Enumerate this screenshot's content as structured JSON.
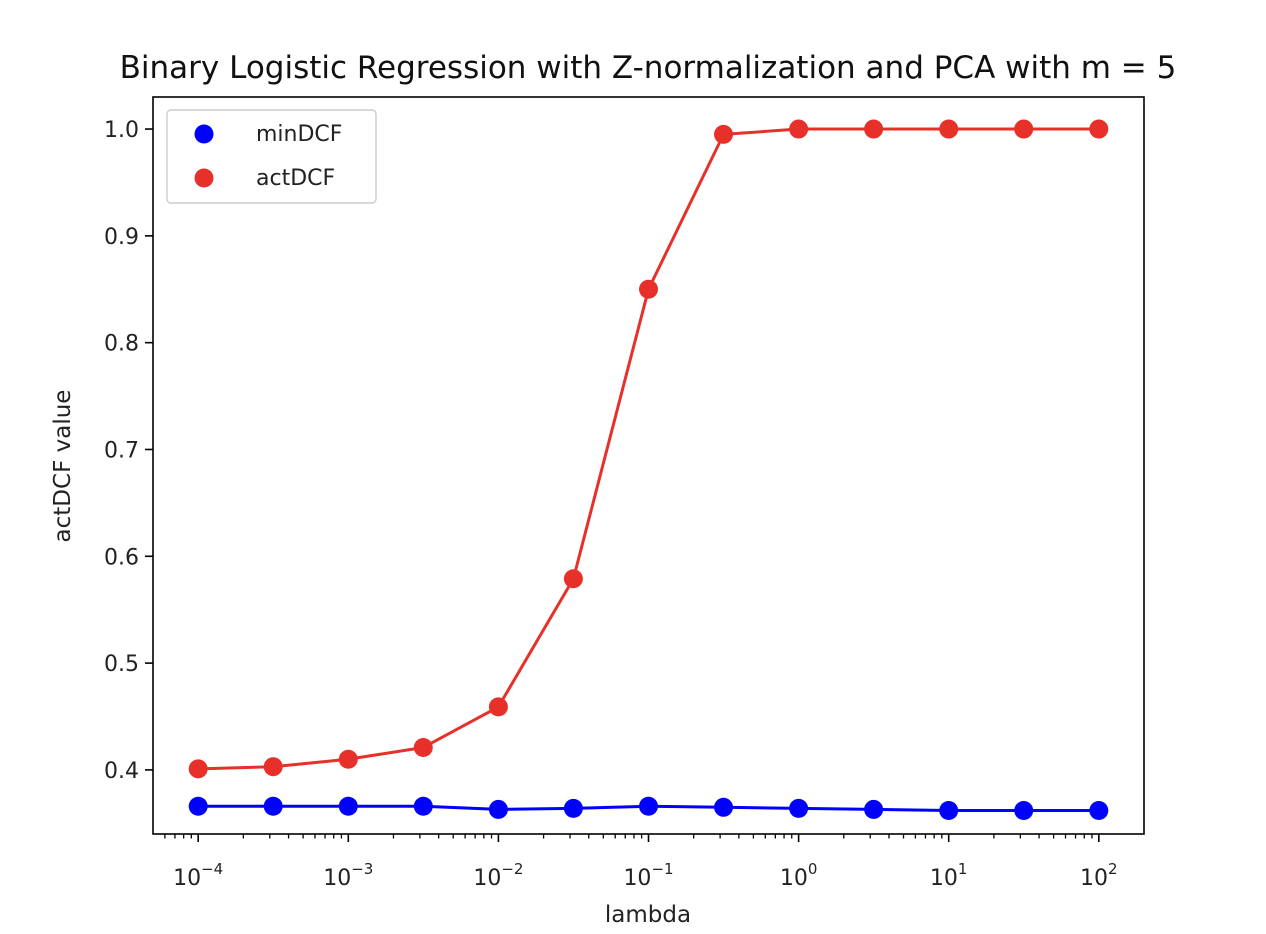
{
  "chart_data": {
    "type": "line",
    "title": "Binary Logistic Regression with Z-normalization and PCA with m = 5",
    "xlabel": "lambda",
    "ylabel": "actDCF value",
    "xscale": "log",
    "xlim": [
      5e-05,
      200
    ],
    "ylim": [
      0.34,
      1.03
    ],
    "x_ticks": [
      {
        "base": "10",
        "exp": "−4"
      },
      {
        "base": "10",
        "exp": "−3"
      },
      {
        "base": "10",
        "exp": "−2"
      },
      {
        "base": "10",
        "exp": "−1"
      },
      {
        "base": "10",
        "exp": "0"
      },
      {
        "base": "10",
        "exp": "1"
      },
      {
        "base": "10",
        "exp": "2"
      }
    ],
    "y_ticks": [
      "0.4",
      "0.5",
      "0.6",
      "0.7",
      "0.8",
      "0.9",
      "1.0"
    ],
    "grid": false,
    "legend_position": "top-left",
    "x": [
      0.0001,
      0.000316,
      0.001,
      0.00316,
      0.01,
      0.0316,
      0.1,
      0.316,
      1,
      3.16,
      10,
      31.6,
      100
    ],
    "series": [
      {
        "name": "minDCF",
        "color": "#0000ff",
        "values": [
          0.366,
          0.366,
          0.366,
          0.366,
          0.363,
          0.364,
          0.366,
          0.365,
          0.364,
          0.363,
          0.362,
          0.362,
          0.362
        ]
      },
      {
        "name": "actDCF",
        "color": "#e8302a",
        "values": [
          0.401,
          0.403,
          0.41,
          0.421,
          0.459,
          0.579,
          0.85,
          0.995,
          1.0,
          1.0,
          1.0,
          1.0,
          1.0
        ]
      }
    ]
  }
}
